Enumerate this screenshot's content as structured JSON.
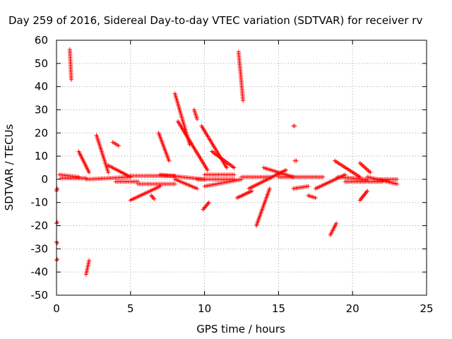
{
  "chart_data": {
    "type": "scatter",
    "title": "Day 259 of 2016, Sidereal Day-to-day VTEC variation (SDTVAR) for receiver rv",
    "xlabel": "GPS time / hours",
    "ylabel": "SDTVAR / TECUs",
    "xlim": [
      0,
      25
    ],
    "ylim": [
      -50,
      60
    ],
    "xticks": [
      "0",
      "5",
      "10",
      "15",
      "20",
      "25"
    ],
    "yticks": [
      "60",
      "50",
      "40",
      "30",
      "20",
      "10",
      "0",
      "-10",
      "-20",
      "-30",
      "-40",
      "-50"
    ],
    "grid": true,
    "marker": "+",
    "color": "#ff0000",
    "segments": [
      {
        "x": [
          0.0,
          0.05
        ],
        "y": [
          -5,
          -4
        ]
      },
      {
        "x": [
          0.0,
          0.05
        ],
        "y": [
          -19,
          -18.5
        ]
      },
      {
        "x": [
          0.0,
          0.05
        ],
        "y": [
          -27,
          -27.5
        ]
      },
      {
        "x": [
          0.0,
          0.05
        ],
        "y": [
          -35,
          -34.5
        ]
      },
      {
        "x": [
          0.2,
          1.5
        ],
        "y": [
          2,
          1
        ]
      },
      {
        "x": [
          0.9,
          1.0
        ],
        "y": [
          56,
          43
        ]
      },
      {
        "x": [
          0.3,
          2.0
        ],
        "y": [
          0.5,
          0.5
        ]
      },
      {
        "x": [
          2.0,
          2.2
        ],
        "y": [
          -41,
          -35
        ]
      },
      {
        "x": [
          1.5,
          2.2
        ],
        "y": [
          12,
          3
        ]
      },
      {
        "x": [
          2.7,
          3.5
        ],
        "y": [
          19,
          3
        ]
      },
      {
        "x": [
          2.0,
          5.0
        ],
        "y": [
          0,
          1
        ]
      },
      {
        "x": [
          3.8,
          4.2
        ],
        "y": [
          16,
          14.5
        ]
      },
      {
        "x": [
          3.5,
          5.0
        ],
        "y": [
          6,
          1
        ]
      },
      {
        "x": [
          4.0,
          5.5
        ],
        "y": [
          -1,
          -1
        ]
      },
      {
        "x": [
          5.0,
          7.0
        ],
        "y": [
          -9,
          -3
        ]
      },
      {
        "x": [
          5.5,
          8.0
        ],
        "y": [
          -2,
          -2
        ]
      },
      {
        "x": [
          6.4,
          6.6
        ],
        "y": [
          -7,
          -8.5
        ]
      },
      {
        "x": [
          5.0,
          8.0
        ],
        "y": [
          1.5,
          1.5
        ]
      },
      {
        "x": [
          6.9,
          7.6
        ],
        "y": [
          20,
          8
        ]
      },
      {
        "x": [
          7.0,
          10.0
        ],
        "y": [
          2,
          0
        ]
      },
      {
        "x": [
          8.0,
          9.0
        ],
        "y": [
          37,
          15
        ]
      },
      {
        "x": [
          8.2,
          10.2
        ],
        "y": [
          25,
          4
        ]
      },
      {
        "x": [
          8.0,
          9.5
        ],
        "y": [
          0,
          -4
        ]
      },
      {
        "x": [
          9.3,
          9.5
        ],
        "y": [
          30,
          26
        ]
      },
      {
        "x": [
          9.5,
          12.0
        ],
        "y": [
          0,
          0
        ]
      },
      {
        "x": [
          9.8,
          11.5
        ],
        "y": [
          23,
          5
        ]
      },
      {
        "x": [
          10.0,
          12.5
        ],
        "y": [
          -3,
          0
        ]
      },
      {
        "x": [
          9.9,
          10.3
        ],
        "y": [
          -13,
          -10
        ]
      },
      {
        "x": [
          10.5,
          12.0
        ],
        "y": [
          12,
          5
        ]
      },
      {
        "x": [
          10.0,
          12.0
        ],
        "y": [
          2,
          2
        ]
      },
      {
        "x": [
          12.3,
          12.6
        ],
        "y": [
          55,
          34
        ]
      },
      {
        "x": [
          12.2,
          13.2
        ],
        "y": [
          -8,
          -5
        ]
      },
      {
        "x": [
          12.5,
          14.5
        ],
        "y": [
          1,
          1
        ]
      },
      {
        "x": [
          13.0,
          15.5
        ],
        "y": [
          -4,
          4
        ]
      },
      {
        "x": [
          13.5,
          14.4
        ],
        "y": [
          -20,
          -4
        ]
      },
      {
        "x": [
          14.0,
          16.0
        ],
        "y": [
          5,
          1
        ]
      },
      {
        "x": [
          15.0,
          18.0
        ],
        "y": [
          1,
          1
        ]
      },
      {
        "x": [
          16.0,
          17.0
        ],
        "y": [
          -4,
          -3
        ]
      },
      {
        "x": [
          16.0,
          16.1
        ],
        "y": [
          23,
          23
        ]
      },
      {
        "x": [
          16.1,
          16.2
        ],
        "y": [
          8,
          8
        ]
      },
      {
        "x": [
          17.0,
          17.5
        ],
        "y": [
          -7,
          -8
        ]
      },
      {
        "x": [
          17.5,
          19.5
        ],
        "y": [
          -4,
          2
        ]
      },
      {
        "x": [
          18.5,
          18.9
        ],
        "y": [
          -24,
          -19
        ]
      },
      {
        "x": [
          18.8,
          20.5
        ],
        "y": [
          8,
          1
        ]
      },
      {
        "x": [
          19.0,
          21.0
        ],
        "y": [
          1,
          0
        ]
      },
      {
        "x": [
          19.5,
          22.0
        ],
        "y": [
          -1,
          -1
        ]
      },
      {
        "x": [
          20.5,
          21.2
        ],
        "y": [
          7,
          3
        ]
      },
      {
        "x": [
          20.5,
          21.0
        ],
        "y": [
          -9,
          -5
        ]
      },
      {
        "x": [
          21.0,
          23.0
        ],
        "y": [
          1,
          -2
        ]
      },
      {
        "x": [
          21.5,
          23.0
        ],
        "y": [
          0,
          0
        ]
      }
    ]
  }
}
